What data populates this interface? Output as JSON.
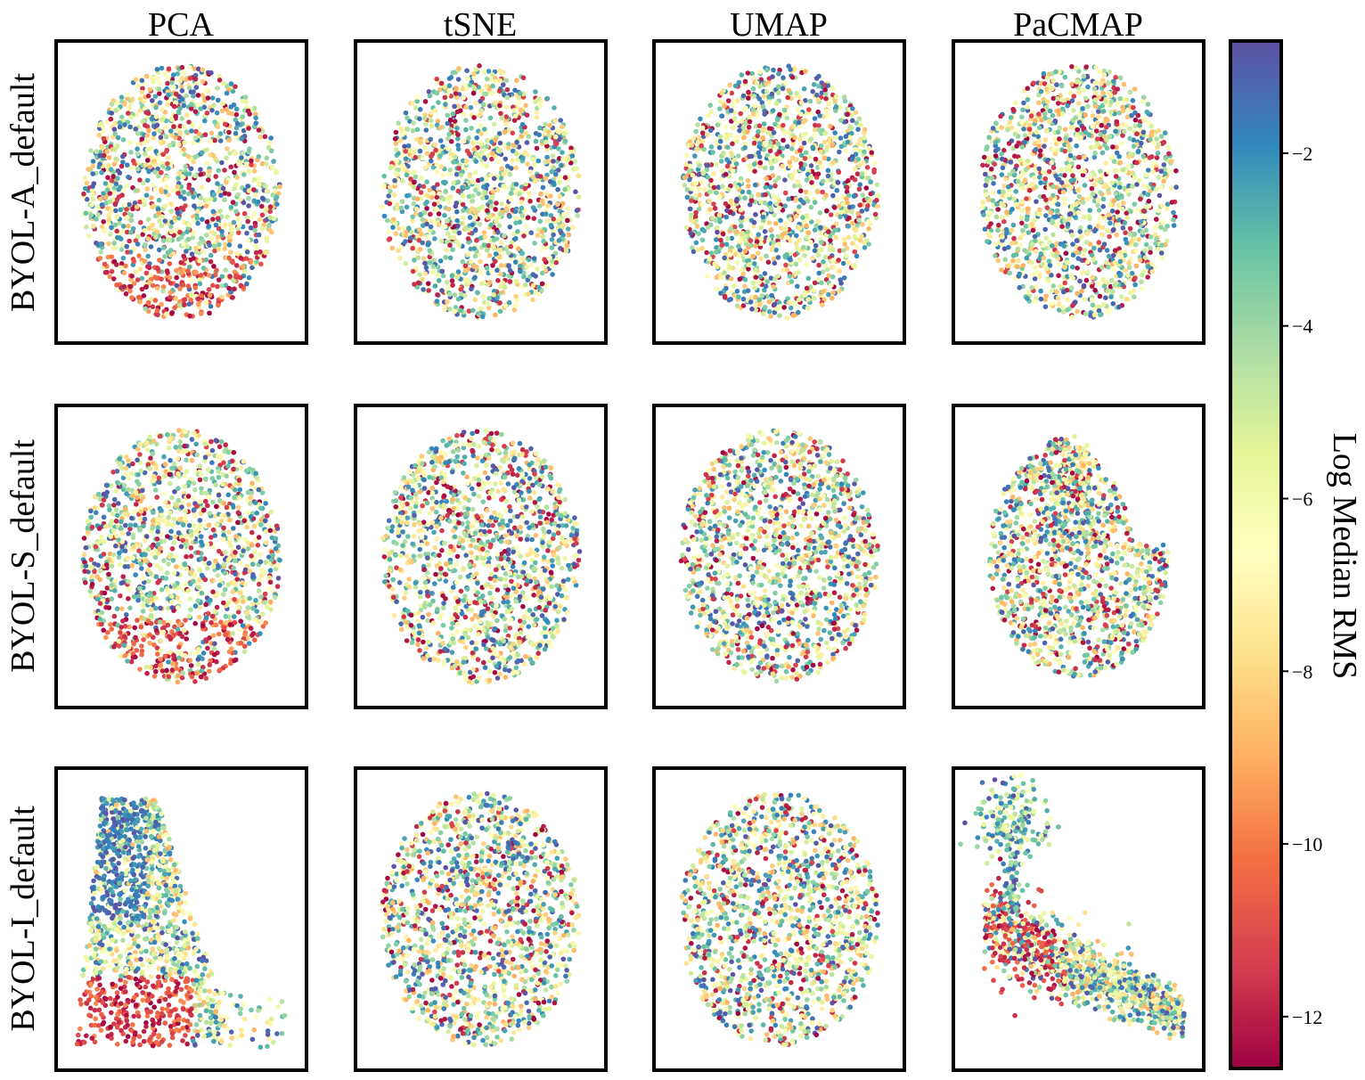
{
  "chart_data": {
    "type": "scatter",
    "columns": [
      "PCA",
      "tSNE",
      "UMAP",
      "PaCMAP"
    ],
    "rows": [
      "BYOL-A_default",
      "BYOL-S_default",
      "BYOL-I_default"
    ],
    "colorbar": {
      "label": "Log Median RMS",
      "colormap": "Spectral",
      "range": [
        -12.6,
        -0.7
      ],
      "ticks": [
        -2,
        -4,
        -6,
        -8,
        -10,
        -12
      ],
      "tick_labels": [
        "−2",
        "−4",
        "−6",
        "−8",
        "−10",
        "−12"
      ]
    },
    "axes": {
      "ticks_visible": false,
      "grid": false
    },
    "points_per_panel_approx": 4000,
    "panels": [
      {
        "row": "BYOL-A_default",
        "method": "PCA",
        "shape": "rounded blob, dense low-RMS (red) band along the bottom"
      },
      {
        "row": "BYOL-A_default",
        "method": "tSNE",
        "shape": "round cloud, red clusters scattered through middle"
      },
      {
        "row": "BYOL-A_default",
        "method": "UMAP",
        "shape": "round cloud, red clusters on left and lower-right"
      },
      {
        "row": "BYOL-A_default",
        "method": "PaCMAP",
        "shape": "ring-like blob, red region across upper middle"
      },
      {
        "row": "BYOL-S_default",
        "method": "PCA",
        "shape": "wide blob, red region along bottom"
      },
      {
        "row": "BYOL-S_default",
        "method": "tSNE",
        "shape": "round cloud, mixed colors"
      },
      {
        "row": "BYOL-S_default",
        "method": "UMAP",
        "shape": "round cloud, red region on left"
      },
      {
        "row": "BYOL-S_default",
        "method": "PaCMAP",
        "shape": "boot-shaped cloud, red on left"
      },
      {
        "row": "BYOL-I_default",
        "method": "PCA",
        "shape": "triangular cloud, dense red band at lower left"
      },
      {
        "row": "BYOL-I_default",
        "method": "tSNE",
        "shape": "wide cloud, red clusters in middle"
      },
      {
        "row": "BYOL-I_default",
        "method": "UMAP",
        "shape": "round cloud, red clusters lower-left"
      },
      {
        "row": "BYOL-I_default",
        "method": "PaCMAP",
        "shape": "small island top-left connected by stem to elongated lower cloud"
      }
    ]
  }
}
